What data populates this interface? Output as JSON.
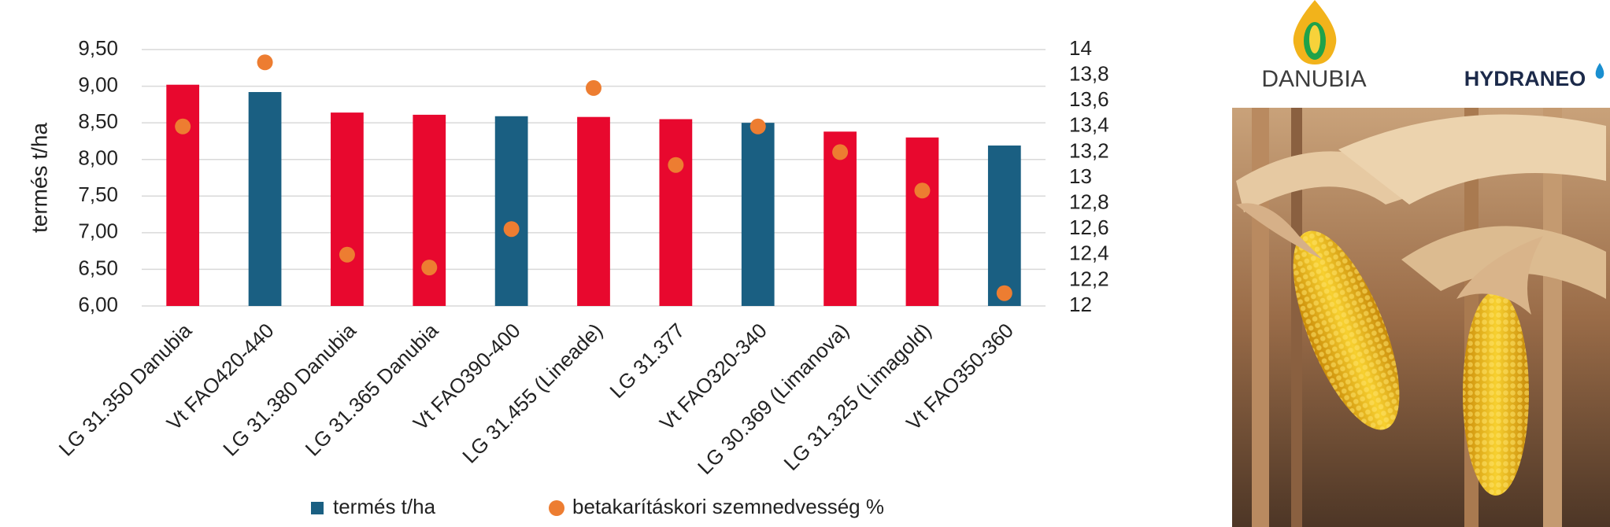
{
  "chart_data": {
    "type": "bar",
    "categories": [
      "LG 31.350 Danubia",
      "Vt FAO420-440",
      "LG 31.380 Danubia",
      "LG 31.365 Danubia",
      "Vt FAO390-400",
      "LG 31.455 (Lineade)",
      "LG 31.377",
      "Vt FAO320-340",
      "LG 30.369 (Limanova)",
      "LG 31.325 (Limagold)",
      "Vt FAO350-360"
    ],
    "series": [
      {
        "name": "termés t/ha",
        "type": "bar",
        "color": "#1a5f82",
        "colors": [
          "#e8082e",
          "#1a5f82",
          "#e8082e",
          "#e8082e",
          "#1a5f82",
          "#e8082e",
          "#e8082e",
          "#1a5f82",
          "#e8082e",
          "#e8082e",
          "#1a5f82"
        ],
        "values": [
          9.02,
          8.92,
          8.64,
          8.61,
          8.59,
          8.58,
          8.55,
          8.5,
          8.38,
          8.3,
          8.19
        ]
      },
      {
        "name": "betakarításkori szemnedvesség %",
        "type": "scatter",
        "axis": "y2",
        "color": "#ed7d31",
        "values": [
          13.4,
          13.9,
          12.4,
          12.3,
          12.6,
          13.7,
          13.1,
          13.4,
          13.2,
          12.9,
          12.1
        ]
      }
    ],
    "y_label": "termés t/ha",
    "ylim": [
      6,
      9.5
    ],
    "yticks": [
      {
        "value": 6,
        "label": "6,00"
      },
      {
        "value": 6.5,
        "label": "6,50"
      },
      {
        "value": 7,
        "label": "7,00"
      },
      {
        "value": 7.5,
        "label": "7,50"
      },
      {
        "value": 8,
        "label": "8,00"
      },
      {
        "value": 8.5,
        "label": "8,50"
      },
      {
        "value": 9,
        "label": "9,00"
      },
      {
        "value": 9.5,
        "label": "9,50"
      }
    ],
    "y2lim": [
      12,
      14
    ],
    "y2ticks": [
      12,
      {
        "value": 12.2,
        "label": "12,2"
      },
      {
        "value": 12.4,
        "label": "12,4"
      },
      {
        "value": 12.6,
        "label": "12,6"
      },
      {
        "value": 12.8,
        "label": "12,8"
      },
      13,
      {
        "value": 13.2,
        "label": "13,2"
      },
      {
        "value": 13.4,
        "label": "13,4"
      },
      {
        "value": 13.6,
        "label": "13,6"
      },
      {
        "value": 13.8,
        "label": "13,8"
      },
      14
    ],
    "grid": true,
    "legend": "bottom"
  },
  "logos": {
    "left": "DANUBIA",
    "right": "HYDRANEO"
  }
}
